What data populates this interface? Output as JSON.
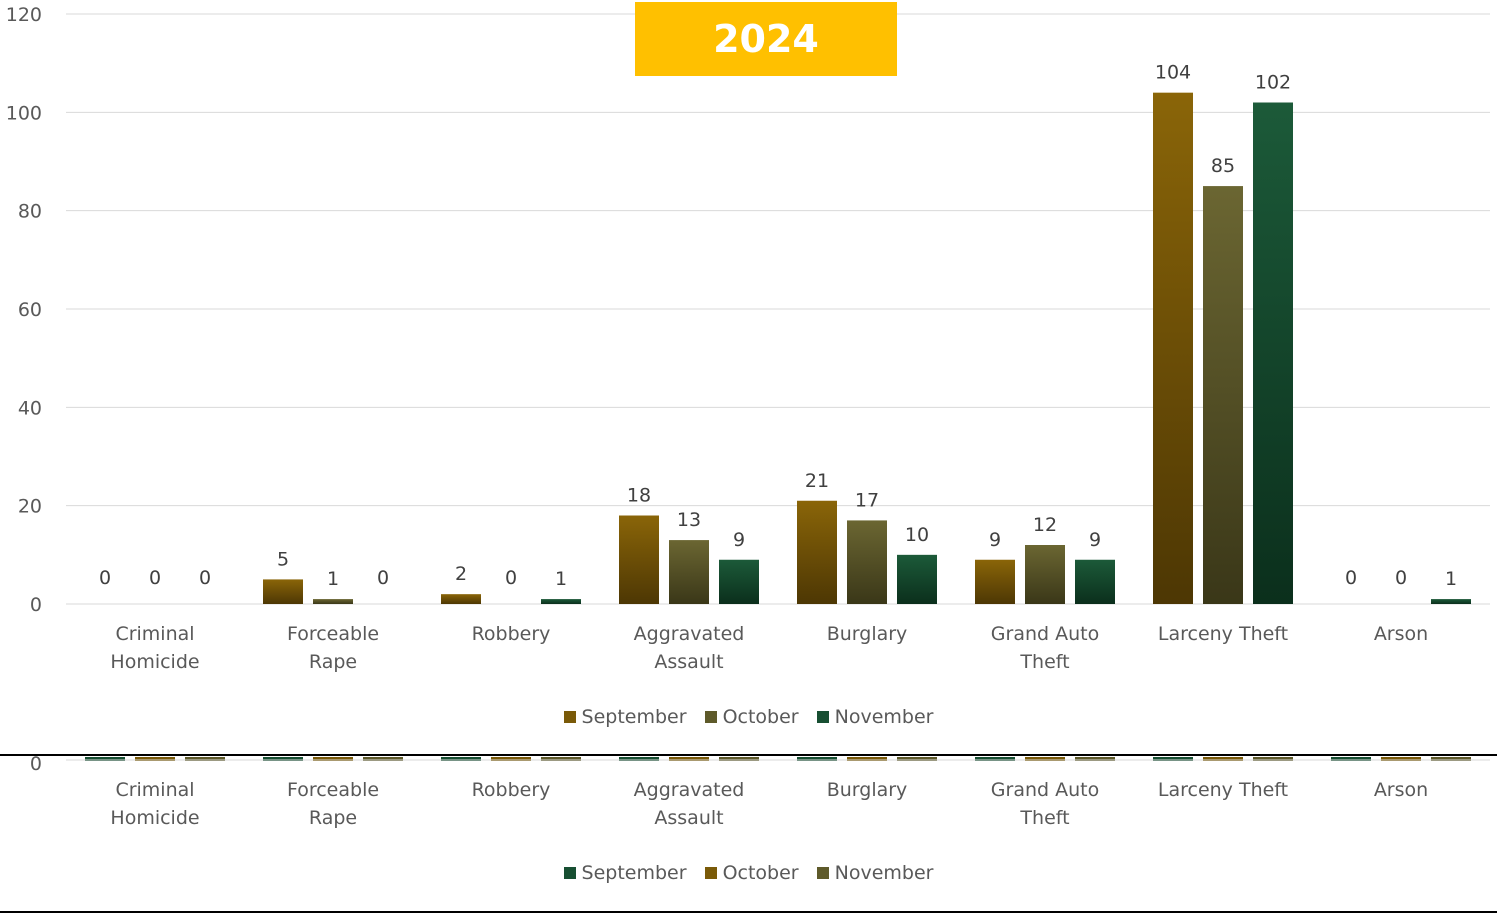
{
  "colors": {
    "september_main": "#7a5a08",
    "october_main": "#5e5a2a",
    "november_main": "#174f32",
    "title_bg": "#ffc000",
    "gridline": "#d9d9d9",
    "text": "#595959"
  },
  "chart_data": {
    "type": "bar",
    "title": "2024",
    "categories": [
      [
        "Criminal",
        "Homicide"
      ],
      [
        "Forceable",
        "Rape"
      ],
      [
        "Robbery"
      ],
      [
        "Aggravated",
        "Assault"
      ],
      [
        "Burglary"
      ],
      [
        "Grand Auto",
        "Theft"
      ],
      [
        "Larceny Theft"
      ],
      [
        "Arson"
      ]
    ],
    "series": [
      {
        "name": "September",
        "values": [
          0,
          5,
          2,
          18,
          21,
          9,
          104,
          0
        ]
      },
      {
        "name": "October",
        "values": [
          0,
          1,
          0,
          13,
          17,
          12,
          85,
          0
        ]
      },
      {
        "name": "November",
        "values": [
          0,
          0,
          1,
          9,
          10,
          9,
          102,
          1
        ]
      }
    ],
    "yticks": [
      "0",
      "20",
      "40",
      "60",
      "80",
      "100",
      "120"
    ],
    "ylim": [
      0,
      120
    ],
    "grid": true,
    "legend_position": "bottom"
  },
  "lower_panel": {
    "ytick": "0",
    "categories": [
      [
        "Criminal",
        "Homicide"
      ],
      [
        "Forceable",
        "Rape"
      ],
      [
        "Robbery"
      ],
      [
        "Aggravated",
        "Assault"
      ],
      [
        "Burglary"
      ],
      [
        "Grand Auto",
        "Theft"
      ],
      [
        "Larceny Theft"
      ],
      [
        "Arson"
      ]
    ],
    "legend": [
      "September",
      "October",
      "November"
    ],
    "legend_colors": [
      "#174f32",
      "#7a5a08",
      "#5e5a2a"
    ]
  }
}
